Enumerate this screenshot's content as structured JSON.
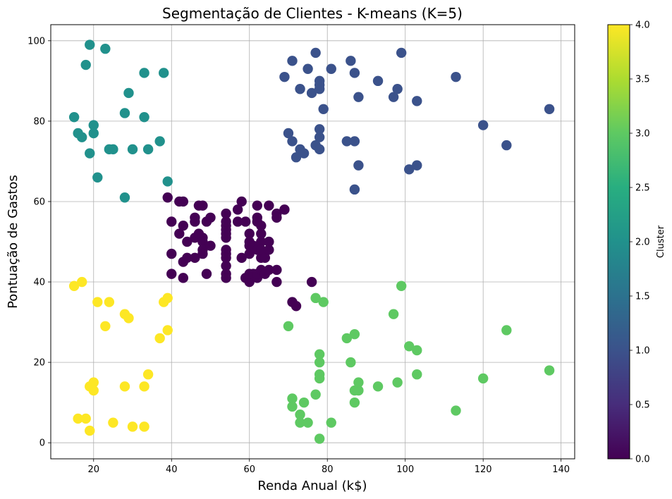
{
  "chart_data": {
    "type": "scatter",
    "title": "Segmentação de Clientes - K-means (K=5)",
    "xlabel": "Renda Anual (k$)",
    "ylabel": "Pontuação de Gastos",
    "xlim": [
      9,
      143.5
    ],
    "ylim": [
      -4,
      104
    ],
    "xticks": [
      20,
      40,
      60,
      80,
      100,
      120,
      140
    ],
    "yticks": [
      0,
      20,
      40,
      60,
      80,
      100
    ],
    "grid": true,
    "colorbar": {
      "label": "Cluster",
      "range": [
        0,
        4
      ],
      "ticks": [
        "0.0",
        "0.5",
        "1.0",
        "1.5",
        "2.0",
        "2.5",
        "3.0",
        "3.5",
        "4.0"
      ],
      "colormap": "viridis",
      "colors": [
        "#440154",
        "#3b528b",
        "#21918c",
        "#5ec962",
        "#fde725"
      ]
    },
    "series": [
      {
        "cluster": 0,
        "color": "#440154",
        "points": [
          [
            39,
            61
          ],
          [
            40,
            55
          ],
          [
            40,
            47
          ],
          [
            40,
            42
          ],
          [
            42,
            52
          ],
          [
            42,
            60
          ],
          [
            43,
            60
          ],
          [
            43,
            54
          ],
          [
            43,
            45
          ],
          [
            43,
            41
          ],
          [
            44,
            50
          ],
          [
            44,
            46
          ],
          [
            46,
            51
          ],
          [
            46,
            46
          ],
          [
            46,
            56
          ],
          [
            46,
            55
          ],
          [
            47,
            52
          ],
          [
            47,
            59
          ],
          [
            48,
            59
          ],
          [
            48,
            51
          ],
          [
            48,
            50
          ],
          [
            48,
            48
          ],
          [
            48,
            47
          ],
          [
            49,
            55
          ],
          [
            49,
            42
          ],
          [
            50,
            49
          ],
          [
            50,
            56
          ],
          [
            54,
            47
          ],
          [
            54,
            54
          ],
          [
            54,
            53
          ],
          [
            54,
            48
          ],
          [
            54,
            52
          ],
          [
            54,
            42
          ],
          [
            54,
            51
          ],
          [
            54,
            55
          ],
          [
            54,
            41
          ],
          [
            54,
            44
          ],
          [
            54,
            57
          ],
          [
            54,
            46
          ],
          [
            57,
            58
          ],
          [
            57,
            55
          ],
          [
            58,
            60
          ],
          [
            58,
            46
          ],
          [
            59,
            55
          ],
          [
            59,
            41
          ],
          [
            60,
            49
          ],
          [
            60,
            40
          ],
          [
            60,
            42
          ],
          [
            60,
            52
          ],
          [
            60,
            47
          ],
          [
            60,
            50
          ],
          [
            61,
            42
          ],
          [
            61,
            49
          ],
          [
            62,
            41
          ],
          [
            62,
            48
          ],
          [
            62,
            59
          ],
          [
            62,
            55
          ],
          [
            62,
            56
          ],
          [
            62,
            42
          ],
          [
            63,
            50
          ],
          [
            63,
            46
          ],
          [
            63,
            43
          ],
          [
            63,
            48
          ],
          [
            63,
            52
          ],
          [
            63,
            54
          ],
          [
            64,
            42
          ],
          [
            64,
            46
          ],
          [
            65,
            48
          ],
          [
            65,
            50
          ],
          [
            65,
            43
          ],
          [
            65,
            59
          ],
          [
            67,
            43
          ],
          [
            67,
            57
          ],
          [
            67,
            56
          ],
          [
            67,
            40
          ],
          [
            69,
            58
          ],
          [
            71,
            35
          ],
          [
            72,
            34
          ],
          [
            76,
            40
          ]
        ]
      },
      {
        "cluster": 1,
        "color": "#3b528b",
        "points": [
          [
            69,
            91
          ],
          [
            70,
            77
          ],
          [
            71,
            95
          ],
          [
            71,
            75
          ],
          [
            72,
            71
          ],
          [
            73,
            88
          ],
          [
            73,
            73
          ],
          [
            74,
            72
          ],
          [
            75,
            93
          ],
          [
            76,
            87
          ],
          [
            77,
            97
          ],
          [
            77,
            74
          ],
          [
            78,
            90
          ],
          [
            78,
            88
          ],
          [
            78,
            89
          ],
          [
            78,
            76
          ],
          [
            78,
            78
          ],
          [
            78,
            73
          ],
          [
            79,
            83
          ],
          [
            81,
            93
          ],
          [
            85,
            75
          ],
          [
            86,
            95
          ],
          [
            87,
            63
          ],
          [
            87,
            75
          ],
          [
            87,
            92
          ],
          [
            88,
            86
          ],
          [
            88,
            69
          ],
          [
            93,
            90
          ],
          [
            97,
            86
          ],
          [
            98,
            88
          ],
          [
            99,
            97
          ],
          [
            101,
            68
          ],
          [
            103,
            85
          ],
          [
            103,
            69
          ],
          [
            113,
            91
          ],
          [
            120,
            79
          ],
          [
            126,
            74
          ],
          [
            137,
            83
          ]
        ]
      },
      {
        "cluster": 2,
        "color": "#21918c",
        "points": [
          [
            15,
            81
          ],
          [
            16,
            77
          ],
          [
            17,
            76
          ],
          [
            18,
            94
          ],
          [
            19,
            72
          ],
          [
            19,
            99
          ],
          [
            20,
            77
          ],
          [
            20,
            79
          ],
          [
            21,
            66
          ],
          [
            23,
            98
          ],
          [
            24,
            73
          ],
          [
            25,
            73
          ],
          [
            28,
            82
          ],
          [
            28,
            61
          ],
          [
            29,
            87
          ],
          [
            30,
            73
          ],
          [
            33,
            92
          ],
          [
            33,
            81
          ],
          [
            34,
            73
          ],
          [
            37,
            75
          ],
          [
            38,
            92
          ],
          [
            39,
            65
          ]
        ]
      },
      {
        "cluster": 3,
        "color": "#5ec962",
        "points": [
          [
            70,
            29
          ],
          [
            71,
            11
          ],
          [
            71,
            9
          ],
          [
            73,
            5
          ],
          [
            73,
            7
          ],
          [
            74,
            10
          ],
          [
            75,
            5
          ],
          [
            77,
            12
          ],
          [
            77,
            36
          ],
          [
            78,
            22
          ],
          [
            78,
            17
          ],
          [
            78,
            20
          ],
          [
            78,
            16
          ],
          [
            78,
            1
          ],
          [
            79,
            35
          ],
          [
            81,
            5
          ],
          [
            85,
            26
          ],
          [
            86,
            20
          ],
          [
            87,
            27
          ],
          [
            87,
            13
          ],
          [
            87,
            10
          ],
          [
            88,
            13
          ],
          [
            88,
            15
          ],
          [
            93,
            14
          ],
          [
            97,
            32
          ],
          [
            98,
            15
          ],
          [
            99,
            39
          ],
          [
            101,
            24
          ],
          [
            103,
            17
          ],
          [
            103,
            23
          ],
          [
            113,
            8
          ],
          [
            120,
            16
          ],
          [
            126,
            28
          ],
          [
            137,
            18
          ]
        ]
      },
      {
        "cluster": 4,
        "color": "#fde725",
        "points": [
          [
            15,
            39
          ],
          [
            16,
            6
          ],
          [
            17,
            40
          ],
          [
            18,
            6
          ],
          [
            19,
            3
          ],
          [
            19,
            14
          ],
          [
            20,
            15
          ],
          [
            20,
            13
          ],
          [
            21,
            35
          ],
          [
            23,
            29
          ],
          [
            24,
            35
          ],
          [
            25,
            5
          ],
          [
            28,
            14
          ],
          [
            28,
            32
          ],
          [
            29,
            31
          ],
          [
            30,
            4
          ],
          [
            33,
            4
          ],
          [
            33,
            14
          ],
          [
            34,
            17
          ],
          [
            37,
            26
          ],
          [
            38,
            35
          ],
          [
            39,
            36
          ],
          [
            39,
            28
          ]
        ]
      }
    ]
  }
}
